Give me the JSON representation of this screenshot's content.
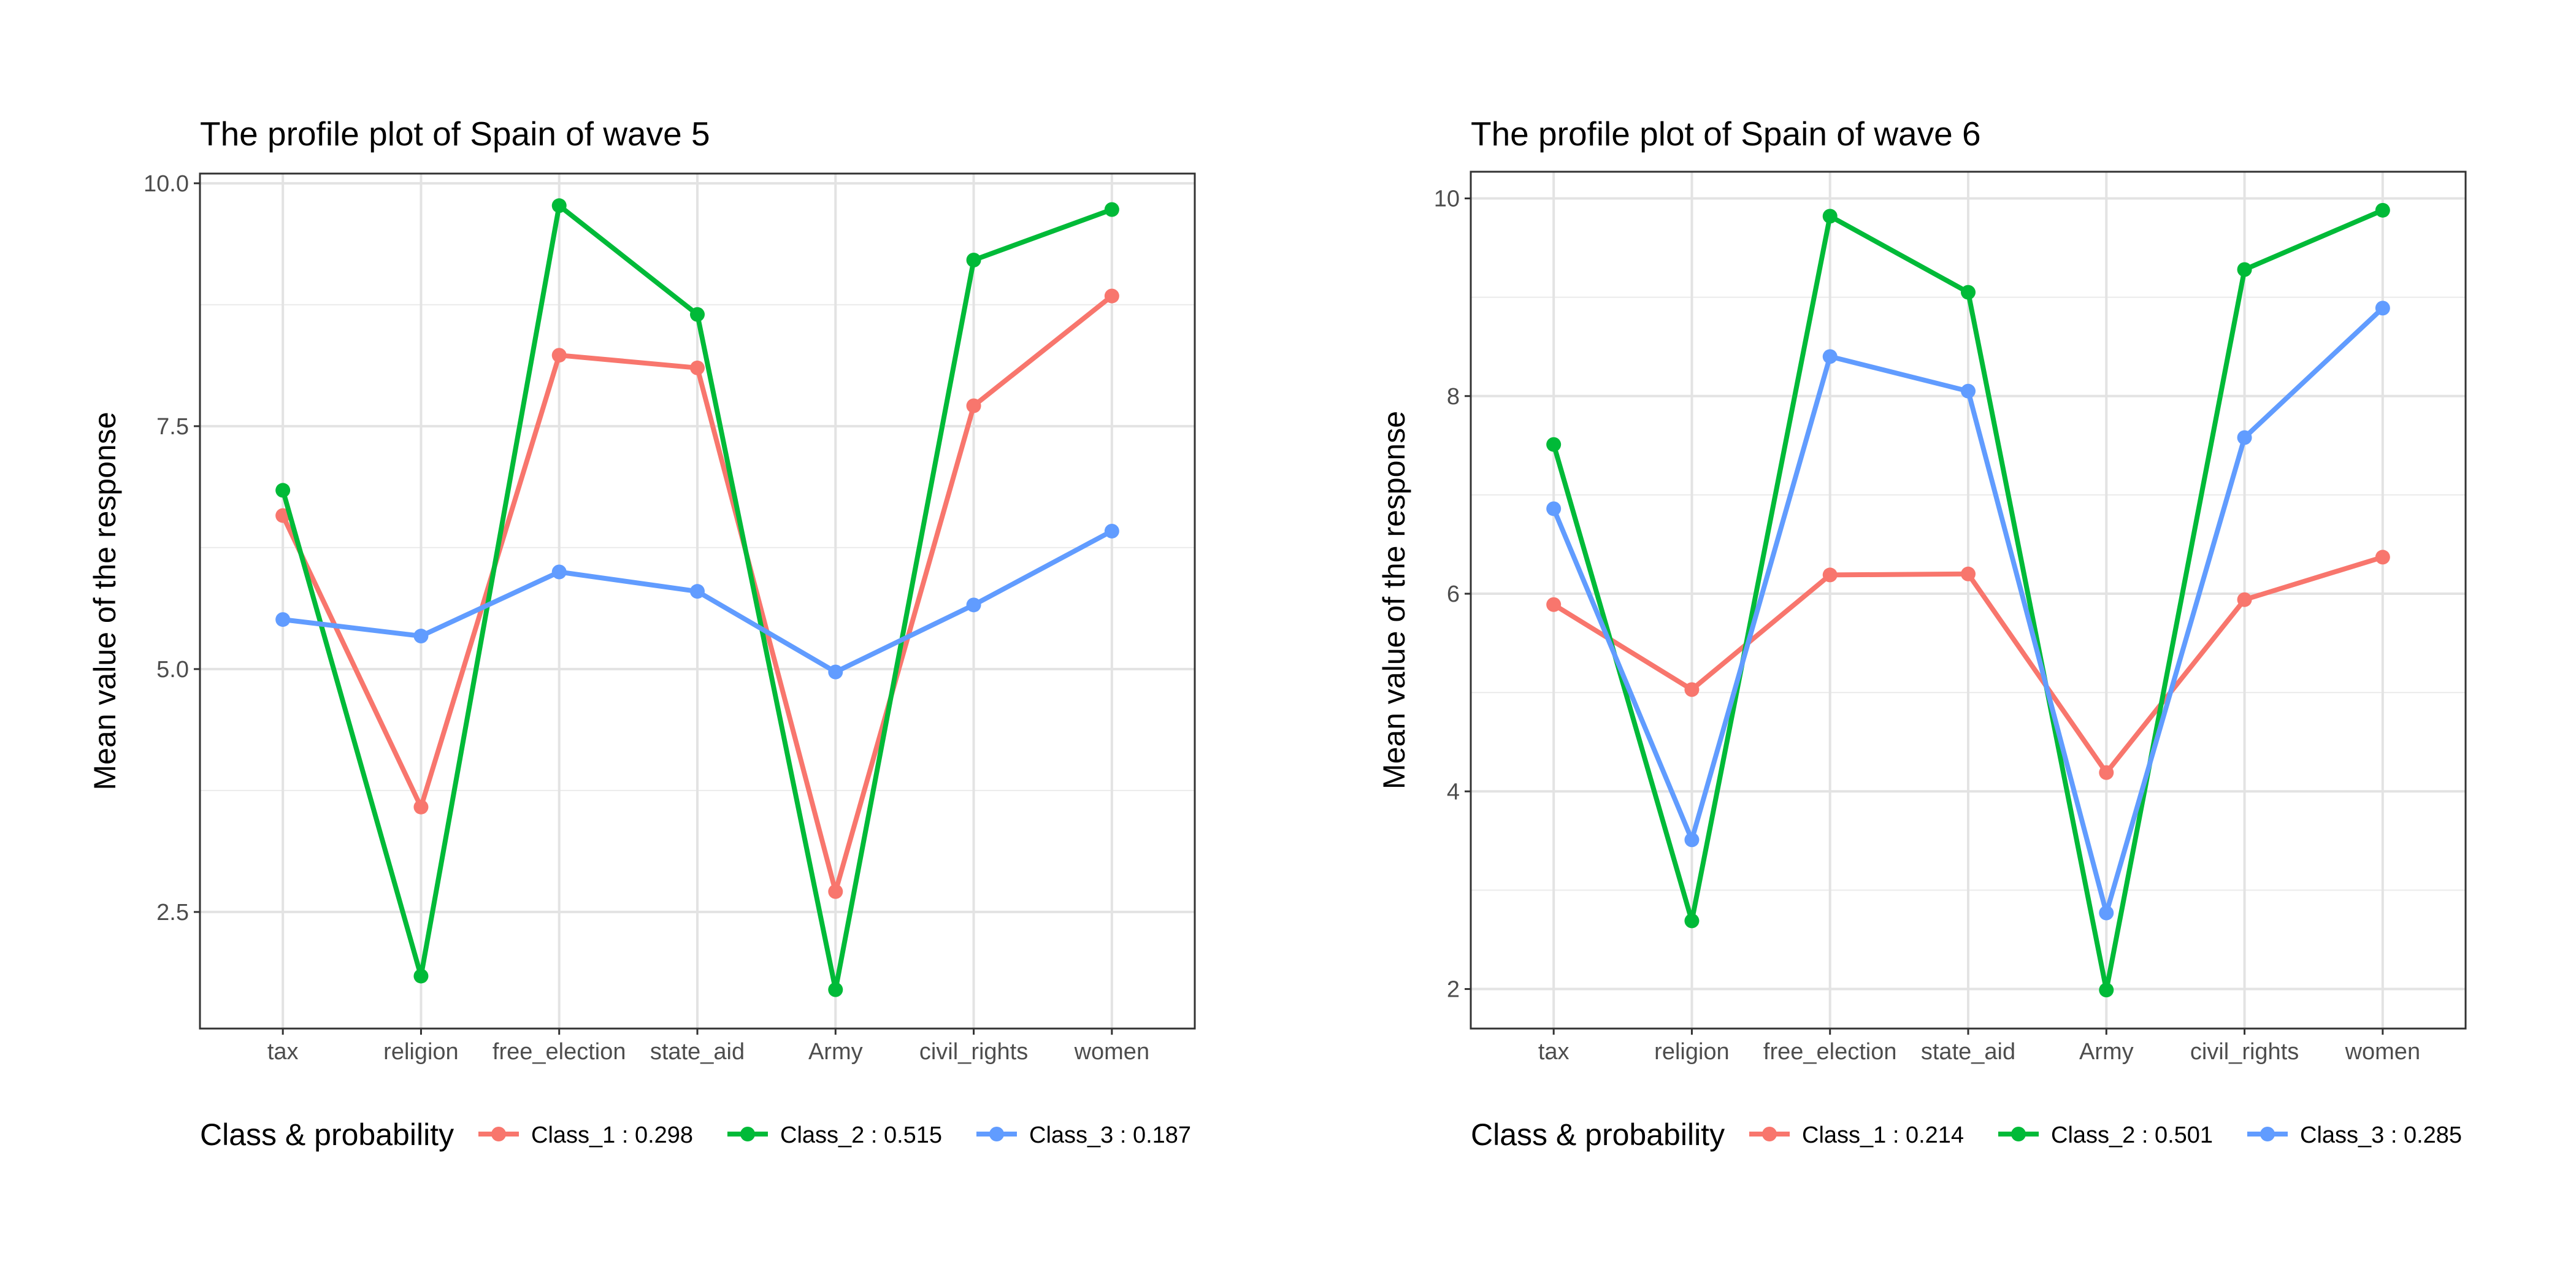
{
  "chart_data": [
    {
      "type": "line",
      "title": "The profile plot of Spain of wave 5",
      "xlabel": "",
      "ylabel": "Mean value of the response",
      "categories": [
        "tax",
        "religion",
        "free_election",
        "state_aid",
        "Army",
        "civil_rights",
        "women"
      ],
      "ylim": [
        1.3,
        10.1
      ],
      "yticks": [
        2.5,
        5.0,
        7.5,
        10.0
      ],
      "ytick_labels": [
        "2.5",
        "5.0",
        "7.5",
        "10.0"
      ],
      "grid": true,
      "legend": {
        "title": "Class & probability",
        "position": "bottom"
      },
      "series": [
        {
          "name": "Class_1 : 0.298",
          "color": "#F8766D",
          "values": [
            6.58,
            3.58,
            8.23,
            8.1,
            2.71,
            7.71,
            8.84
          ]
        },
        {
          "name": "Class_2 : 0.515",
          "color": "#00BA38",
          "values": [
            6.84,
            1.84,
            9.77,
            8.65,
            1.7,
            9.21,
            9.73
          ]
        },
        {
          "name": "Class_3 : 0.187",
          "color": "#619CFF",
          "values": [
            5.51,
            5.34,
            6.0,
            5.8,
            4.97,
            5.66,
            6.42
          ]
        }
      ]
    },
    {
      "type": "line",
      "title": "The profile plot of Spain of wave 6",
      "xlabel": "",
      "ylabel": "Mean value of the response",
      "categories": [
        "tax",
        "religion",
        "free_election",
        "state_aid",
        "Army",
        "civil_rights",
        "women"
      ],
      "ylim": [
        1.6,
        10.27
      ],
      "yticks": [
        2,
        4,
        6,
        8,
        10
      ],
      "ytick_labels": [
        "2",
        "4",
        "6",
        "8",
        "10"
      ],
      "grid": true,
      "legend": {
        "title": "Class & probability",
        "position": "bottom"
      },
      "series": [
        {
          "name": "Class_1 : 0.214",
          "color": "#F8766D",
          "values": [
            5.89,
            5.03,
            6.19,
            6.2,
            4.19,
            5.94,
            6.37
          ]
        },
        {
          "name": "Class_2 : 0.501",
          "color": "#00BA38",
          "values": [
            7.51,
            2.69,
            9.82,
            9.05,
            1.99,
            9.28,
            9.88
          ]
        },
        {
          "name": "Class_3 : 0.285",
          "color": "#619CFF",
          "values": [
            6.86,
            3.51,
            8.4,
            8.05,
            2.77,
            7.58,
            8.89
          ]
        }
      ]
    }
  ]
}
